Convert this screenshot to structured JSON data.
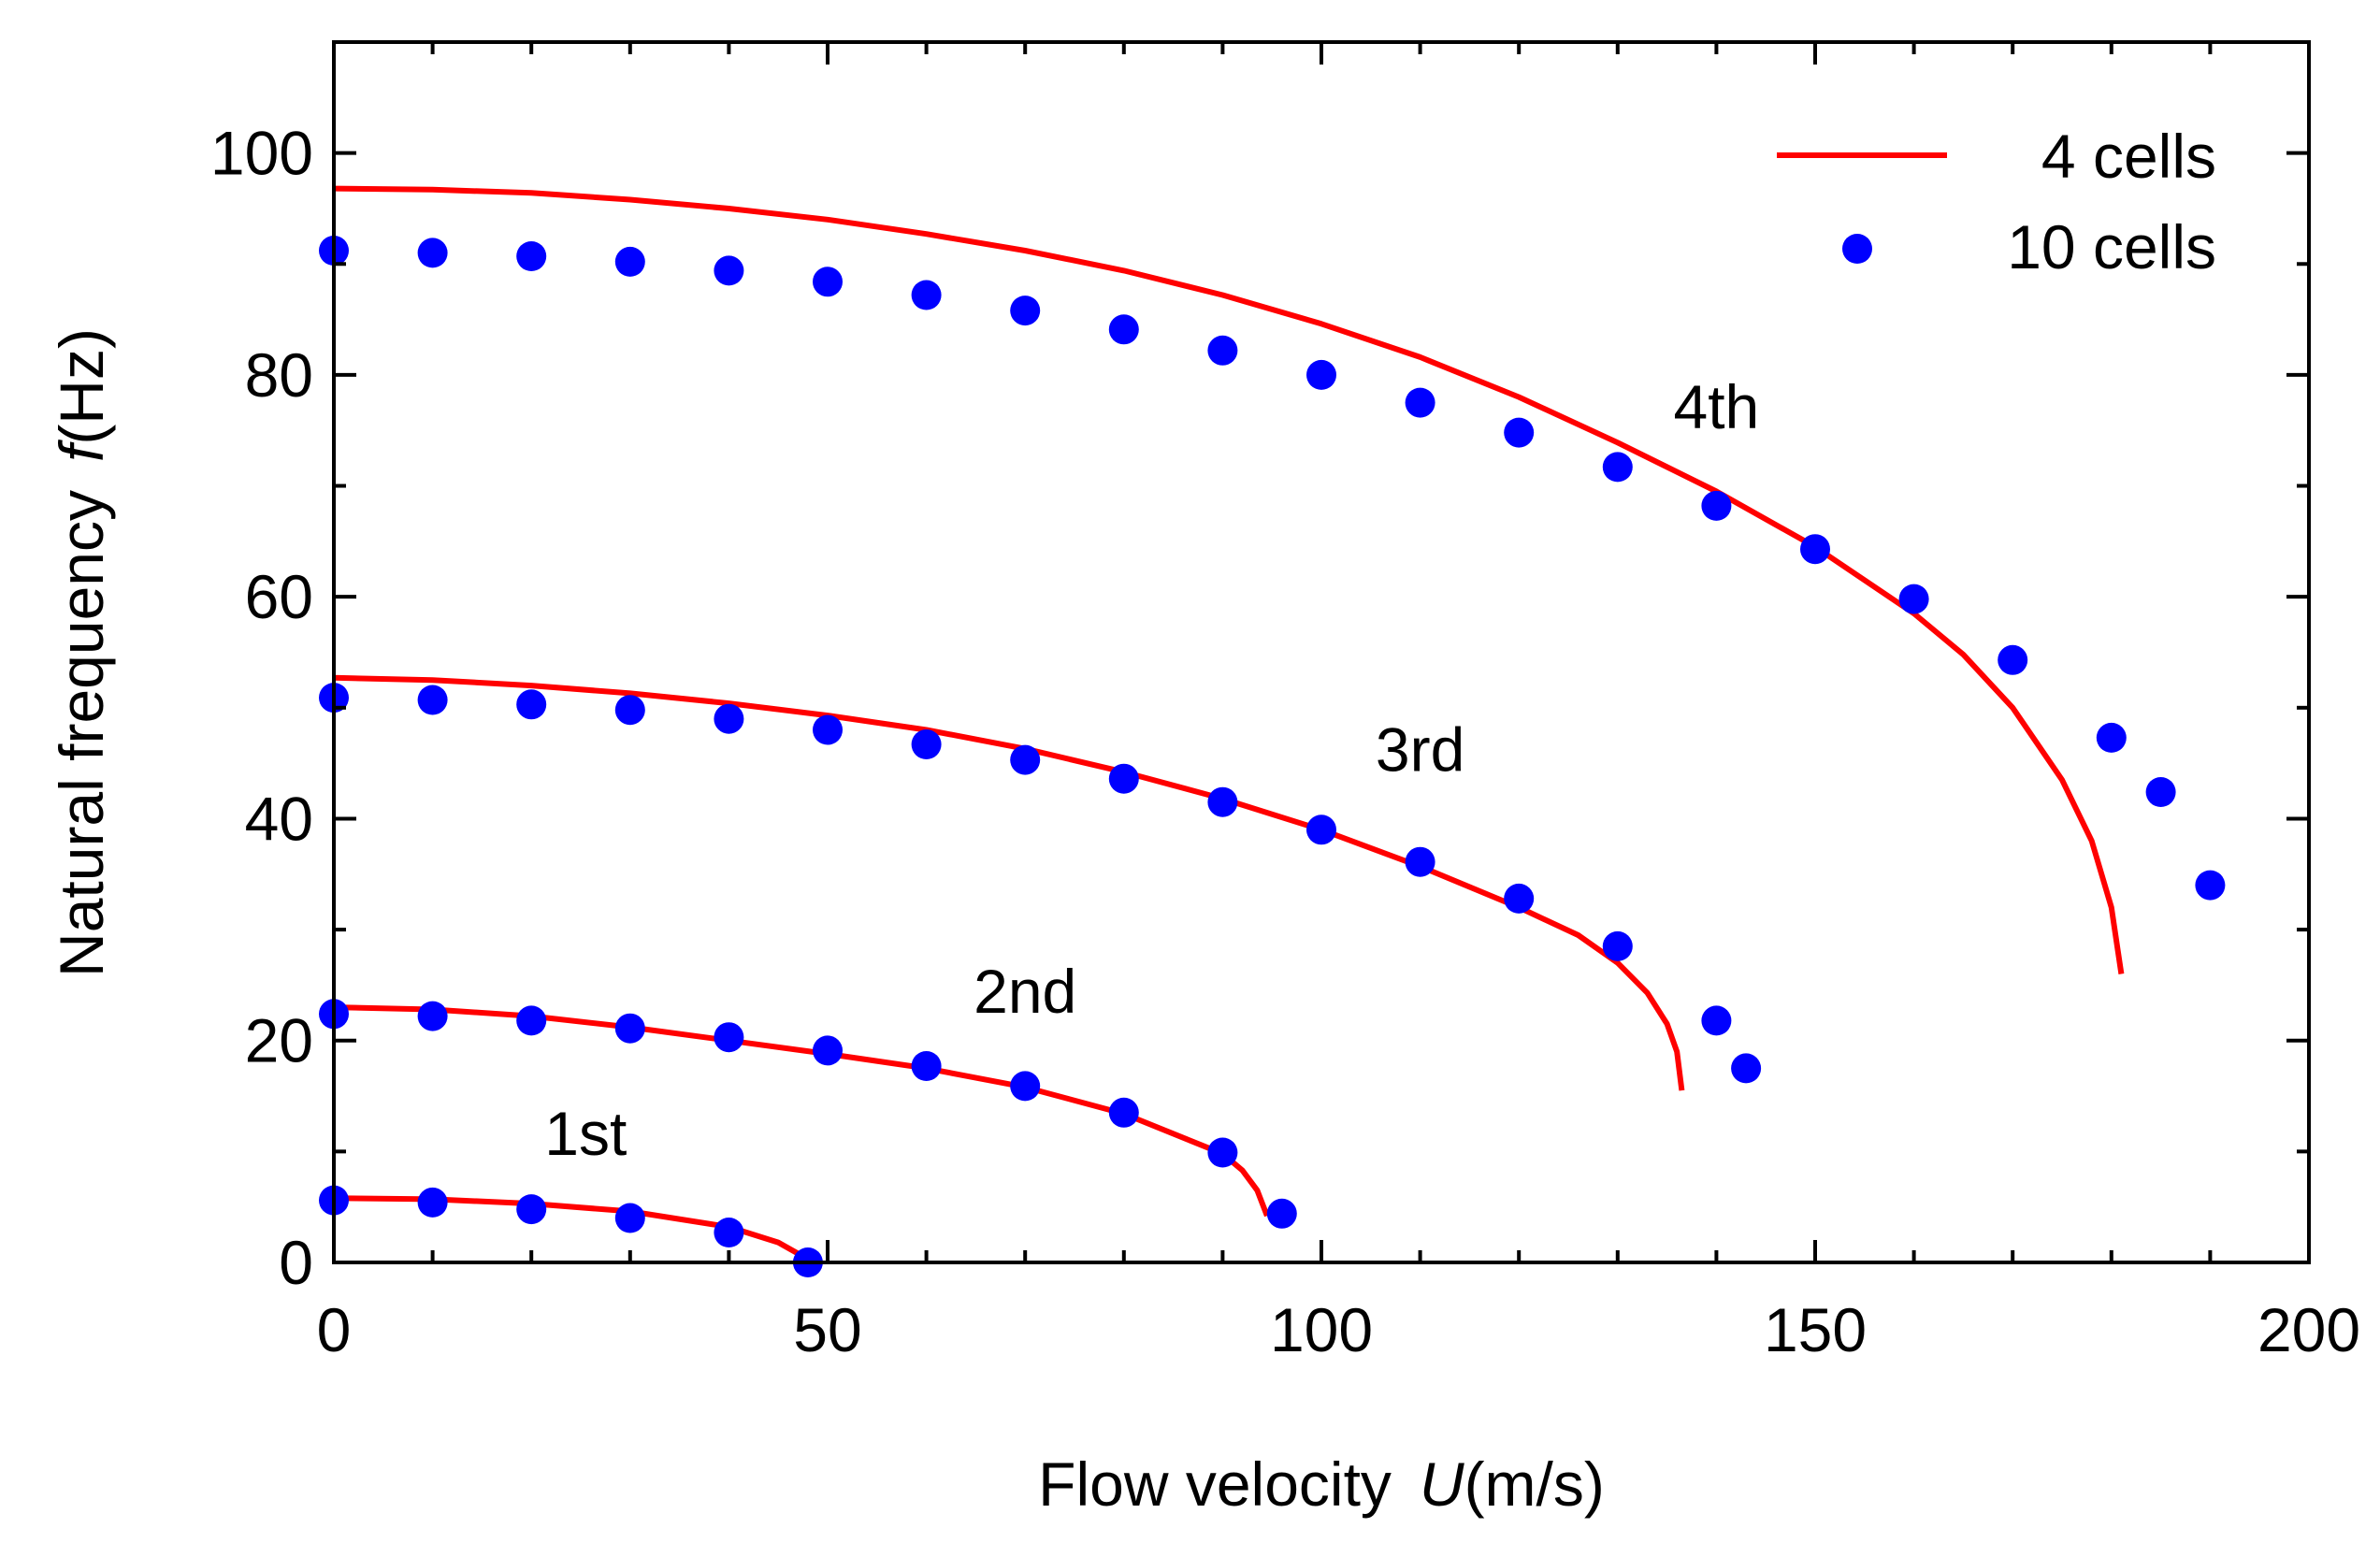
{
  "chart_data": {
    "type": "line",
    "title": "",
    "xlabel": {
      "prefix": "Flow velocity",
      "variable": "U",
      "unit": "(m/s)"
    },
    "ylabel": {
      "prefix": "Natural frequency",
      "variable": "f",
      "unit": "(Hz)"
    },
    "xlim": [
      0,
      200
    ],
    "ylim": [
      0,
      110
    ],
    "xticks": [
      0,
      50,
      100,
      150,
      200
    ],
    "yticks": [
      0,
      20,
      40,
      60,
      80,
      100
    ],
    "grid": false,
    "legend_position": "top-right",
    "colors": {
      "line": "#ff0000",
      "dots": "#0000ff"
    },
    "series": [
      {
        "name": "4 cells",
        "style": "line",
        "curves": [
          {
            "mode": "1st",
            "x": [
              0,
              10,
              20,
              30,
              40,
              45,
              47,
              48
            ],
            "y": [
              5.8,
              5.7,
              5.3,
              4.6,
              3.2,
              1.8,
              0.8,
              0
            ]
          },
          {
            "mode": "2nd",
            "x": [
              0,
              10,
              20,
              30,
              40,
              50,
              60,
              70,
              80,
              90,
              92,
              93.5,
              94.5
            ],
            "y": [
              23.0,
              22.8,
              22.2,
              21.2,
              20.0,
              18.8,
              17.5,
              15.8,
              13.4,
              9.8,
              8.3,
              6.5,
              4.2
            ]
          },
          {
            "mode": "3rd",
            "x": [
              0,
              10,
              20,
              30,
              40,
              50,
              60,
              70,
              80,
              90,
              100,
              110,
              120,
              126,
              130,
              133,
              135,
              136,
              136.5
            ],
            "y": [
              52.7,
              52.5,
              52.0,
              51.3,
              50.4,
              49.3,
              48.0,
              46.3,
              44.2,
              41.8,
              39.0,
              35.7,
              32.0,
              29.5,
              27.0,
              24.3,
              21.5,
              19.0,
              15.5
            ]
          },
          {
            "mode": "4th",
            "x": [
              0,
              10,
              20,
              30,
              40,
              50,
              60,
              70,
              80,
              90,
              100,
              110,
              120,
              130,
              140,
              150,
              160,
              165,
              170,
              175,
              178,
              180,
              181
            ],
            "y": [
              96.8,
              96.7,
              96.4,
              95.8,
              95.0,
              94.0,
              92.7,
              91.2,
              89.4,
              87.2,
              84.6,
              81.6,
              78.0,
              73.9,
              69.5,
              64.5,
              58.5,
              54.8,
              50.0,
              43.5,
              38.0,
              32.0,
              26.0
            ]
          }
        ]
      },
      {
        "name": "10 cells",
        "style": "dots",
        "curves": [
          {
            "mode": "1st",
            "x": [
              0,
              10,
              20,
              30,
              40,
              48
            ],
            "y": [
              5.6,
              5.4,
              4.8,
              4.0,
              2.7,
              0
            ]
          },
          {
            "mode": "2nd",
            "x": [
              0,
              10,
              20,
              30,
              40,
              50,
              60,
              70,
              80,
              90,
              96
            ],
            "y": [
              22.4,
              22.2,
              21.8,
              21.1,
              20.3,
              19.1,
              17.7,
              15.9,
              13.5,
              9.9,
              4.4
            ]
          },
          {
            "mode": "3rd",
            "x": [
              0,
              10,
              20,
              30,
              40,
              50,
              60,
              70,
              80,
              90,
              100,
              110,
              120,
              130,
              140,
              143
            ],
            "y": [
              50.9,
              50.7,
              50.3,
              49.8,
              49.0,
              48.0,
              46.7,
              45.3,
              43.6,
              41.5,
              39.0,
              36.1,
              32.8,
              28.5,
              21.8,
              17.5
            ]
          },
          {
            "mode": "4th",
            "x": [
              0,
              10,
              20,
              30,
              40,
              50,
              60,
              70,
              80,
              90,
              100,
              110,
              120,
              130,
              140,
              150,
              160,
              170,
              180,
              185,
              190
            ],
            "y": [
              91.2,
              91.0,
              90.7,
              90.2,
              89.4,
              88.4,
              87.2,
              85.8,
              84.1,
              82.2,
              80.0,
              77.5,
              74.8,
              71.7,
              68.2,
              64.3,
              59.8,
              54.3,
              47.3,
              42.4,
              34.0
            ]
          }
        ]
      }
    ],
    "annotations": [
      {
        "text": "1st",
        "x": 25.5,
        "y": 9.7
      },
      {
        "text": "2nd",
        "x": 70,
        "y": 22.5
      },
      {
        "text": "3rd",
        "x": 110,
        "y": 44.3
      },
      {
        "text": "4th",
        "x": 140,
        "y": 75.2
      }
    ]
  }
}
